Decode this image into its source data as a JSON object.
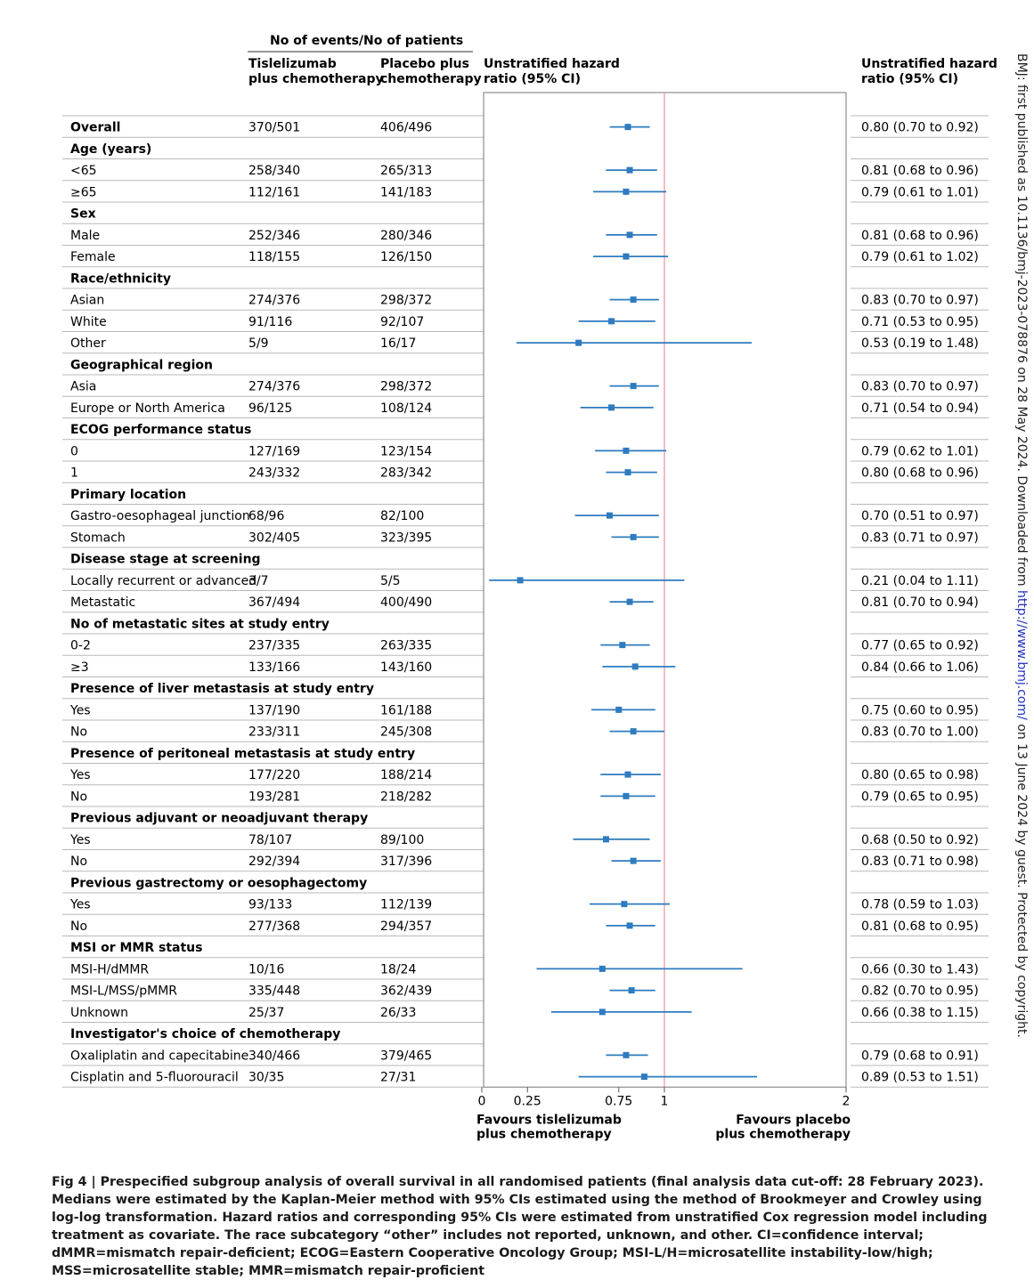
{
  "header": {
    "events_group": "No of events/No of patients",
    "col_tisle_1": "Tislelizumab",
    "col_tisle_2": "plus chemotherapy",
    "col_placebo_1": "Placebo plus",
    "col_placebo_2": "chemotherapy",
    "col_hr_1": "Unstratified hazard",
    "col_hr_2": "ratio (95% CI)",
    "col_hrtext_1": "Unstratified hazard",
    "col_hrtext_2": "ratio (95% CI)"
  },
  "chart_data": {
    "type": "forest",
    "xlim": [
      0,
      2
    ],
    "xticks": [
      "0",
      "0.25",
      "0.75",
      "1",
      "2"
    ],
    "reference_line": 1,
    "reference_color": "#f4a6b0",
    "marker_color": "#2e7bbf",
    "favours_left_1": "Favours tislelizumab",
    "favours_left_2": "plus chemotherapy",
    "favours_right_1": "Favours placebo",
    "favours_right_2": "plus chemotherapy",
    "rows": [
      {
        "label": "Overall",
        "group": true,
        "tisle": "370/501",
        "placebo": "406/496",
        "hr": 0.8,
        "lo": 0.7,
        "hi": 0.92,
        "text": "0.80 (0.70 to 0.92)"
      },
      {
        "label": "Age (years)",
        "group": true
      },
      {
        "label": "<65",
        "tisle": "258/340",
        "placebo": "265/313",
        "hr": 0.81,
        "lo": 0.68,
        "hi": 0.96,
        "text": "0.81 (0.68 to 0.96)"
      },
      {
        "label": "≥65",
        "tisle": "112/161",
        "placebo": "141/183",
        "hr": 0.79,
        "lo": 0.61,
        "hi": 1.01,
        "text": "0.79 (0.61 to 1.01)"
      },
      {
        "label": "Sex",
        "group": true
      },
      {
        "label": "Male",
        "tisle": "252/346",
        "placebo": "280/346",
        "hr": 0.81,
        "lo": 0.68,
        "hi": 0.96,
        "text": "0.81 (0.68 to 0.96)"
      },
      {
        "label": "Female",
        "tisle": "118/155",
        "placebo": "126/150",
        "hr": 0.79,
        "lo": 0.61,
        "hi": 1.02,
        "text": "0.79 (0.61 to 1.02)"
      },
      {
        "label": "Race/ethnicity",
        "group": true
      },
      {
        "label": "Asian",
        "tisle": "274/376",
        "placebo": "298/372",
        "hr": 0.83,
        "lo": 0.7,
        "hi": 0.97,
        "text": "0.83 (0.70 to 0.97)"
      },
      {
        "label": "White",
        "tisle": "91/116",
        "placebo": "92/107",
        "hr": 0.71,
        "lo": 0.53,
        "hi": 0.95,
        "text": "0.71 (0.53 to 0.95)"
      },
      {
        "label": "Other",
        "tisle": "5/9",
        "placebo": "16/17",
        "hr": 0.53,
        "lo": 0.19,
        "hi": 1.48,
        "text": "0.53 (0.19 to 1.48)"
      },
      {
        "label": "Geographical region",
        "group": true
      },
      {
        "label": "Asia",
        "tisle": "274/376",
        "placebo": "298/372",
        "hr": 0.83,
        "lo": 0.7,
        "hi": 0.97,
        "text": "0.83 (0.70 to 0.97)"
      },
      {
        "label": "Europe or North America",
        "tisle": "96/125",
        "placebo": "108/124",
        "hr": 0.71,
        "lo": 0.54,
        "hi": 0.94,
        "text": "0.71 (0.54 to 0.94)"
      },
      {
        "label": "ECOG performance status",
        "group": true
      },
      {
        "label": "0",
        "tisle": "127/169",
        "placebo": "123/154",
        "hr": 0.79,
        "lo": 0.62,
        "hi": 1.01,
        "text": "0.79 (0.62 to 1.01)"
      },
      {
        "label": "1",
        "tisle": "243/332",
        "placebo": "283/342",
        "hr": 0.8,
        "lo": 0.68,
        "hi": 0.96,
        "text": "0.80 (0.68 to 0.96)"
      },
      {
        "label": "Primary location",
        "group": true
      },
      {
        "label": "Gastro-oesophageal junction",
        "tisle": "68/96",
        "placebo": "82/100",
        "hr": 0.7,
        "lo": 0.51,
        "hi": 0.97,
        "text": "0.70 (0.51 to 0.97)"
      },
      {
        "label": "Stomach",
        "tisle": "302/405",
        "placebo": "323/395",
        "hr": 0.83,
        "lo": 0.71,
        "hi": 0.97,
        "text": "0.83 (0.71 to 0.97)"
      },
      {
        "label": "Disease stage at screening",
        "group": true
      },
      {
        "label": "Locally recurrent or advanced",
        "tisle": "3/7",
        "placebo": "5/5",
        "hr": 0.21,
        "lo": 0.04,
        "hi": 1.11,
        "text": "0.21 (0.04 to 1.11)"
      },
      {
        "label": "Metastatic",
        "tisle": "367/494",
        "placebo": "400/490",
        "hr": 0.81,
        "lo": 0.7,
        "hi": 0.94,
        "text": "0.81 (0.70 to 0.94)"
      },
      {
        "label": "No of metastatic sites at study entry",
        "group": true
      },
      {
        "label": "0-2",
        "tisle": "237/335",
        "placebo": "263/335",
        "hr": 0.77,
        "lo": 0.65,
        "hi": 0.92,
        "text": "0.77 (0.65 to 0.92)"
      },
      {
        "label": "≥3",
        "tisle": "133/166",
        "placebo": "143/160",
        "hr": 0.84,
        "lo": 0.66,
        "hi": 1.06,
        "text": "0.84 (0.66 to 1.06)"
      },
      {
        "label": "Presence of liver metastasis at study entry",
        "group": true
      },
      {
        "label": "Yes",
        "tisle": "137/190",
        "placebo": "161/188",
        "hr": 0.75,
        "lo": 0.6,
        "hi": 0.95,
        "text": "0.75 (0.60 to 0.95)"
      },
      {
        "label": "No",
        "tisle": "233/311",
        "placebo": "245/308",
        "hr": 0.83,
        "lo": 0.7,
        "hi": 1.0,
        "text": "0.83 (0.70 to 1.00)"
      },
      {
        "label": "Presence of peritoneal metastasis at study entry",
        "group": true
      },
      {
        "label": "Yes",
        "tisle": "177/220",
        "placebo": "188/214",
        "hr": 0.8,
        "lo": 0.65,
        "hi": 0.98,
        "text": "0.80 (0.65 to 0.98)"
      },
      {
        "label": "No",
        "tisle": "193/281",
        "placebo": "218/282",
        "hr": 0.79,
        "lo": 0.65,
        "hi": 0.95,
        "text": "0.79 (0.65 to 0.95)"
      },
      {
        "label": "Previous adjuvant or neoadjuvant therapy",
        "group": true
      },
      {
        "label": "Yes",
        "tisle": "78/107",
        "placebo": "89/100",
        "hr": 0.68,
        "lo": 0.5,
        "hi": 0.92,
        "text": "0.68 (0.50 to 0.92)"
      },
      {
        "label": "No",
        "tisle": "292/394",
        "placebo": "317/396",
        "hr": 0.83,
        "lo": 0.71,
        "hi": 0.98,
        "text": "0.83 (0.71 to 0.98)"
      },
      {
        "label": "Previous gastrectomy or oesophagectomy",
        "group": true
      },
      {
        "label": "Yes",
        "tisle": "93/133",
        "placebo": "112/139",
        "hr": 0.78,
        "lo": 0.59,
        "hi": 1.03,
        "text": "0.78 (0.59 to 1.03)"
      },
      {
        "label": "No",
        "tisle": "277/368",
        "placebo": "294/357",
        "hr": 0.81,
        "lo": 0.68,
        "hi": 0.95,
        "text": "0.81 (0.68 to 0.95)"
      },
      {
        "label": "MSI or MMR status",
        "group": true
      },
      {
        "label": "MSI-H/dMMR",
        "tisle": "10/16",
        "placebo": "18/24",
        "hr": 0.66,
        "lo": 0.3,
        "hi": 1.43,
        "text": "0.66 (0.30 to 1.43)"
      },
      {
        "label": "MSI-L/MSS/pMMR",
        "tisle": "335/448",
        "placebo": "362/439",
        "hr": 0.82,
        "lo": 0.7,
        "hi": 0.95,
        "text": "0.82 (0.70 to 0.95)"
      },
      {
        "label": "Unknown",
        "tisle": "25/37",
        "placebo": "26/33",
        "hr": 0.66,
        "lo": 0.38,
        "hi": 1.15,
        "text": "0.66 (0.38 to 1.15)"
      },
      {
        "label": "Investigator's choice of chemotherapy",
        "group": true
      },
      {
        "label": "Oxaliplatin and capecitabine",
        "tisle": "340/466",
        "placebo": "379/465",
        "hr": 0.79,
        "lo": 0.68,
        "hi": 0.91,
        "text": "0.79 (0.68 to 0.91)"
      },
      {
        "label": "Cisplatin and 5-fluorouracil",
        "tisle": "30/35",
        "placebo": "27/31",
        "hr": 0.89,
        "lo": 0.53,
        "hi": 1.51,
        "text": "0.89 (0.53 to 1.51)"
      }
    ]
  },
  "caption": {
    "lead": "Fig 4 | ",
    "body": "Prespecified subgroup analysis of overall survival in all randomised patients (final analysis data cut-off: 28 February 2023). Medians were estimated by the Kaplan-Meier method with 95% CIs estimated using the method of Brookmeyer and Crowley using log-log transformation. Hazard ratios and corresponding 95% CIs were estimated from unstratified Cox regression model including treatment as covariate. The race subcategory “other” includes not reported, unknown, and other. CI=confidence interval; dMMR=mismatch repair-deficient; ECOG=Eastern Cooperative Oncology Group; MSI-L/H=microsatellite instability-low/high; MSS=microsatellite stable; MMR=mismatch repair-proficient"
  },
  "sidenote": {
    "prefix": "BMJ: first published as 10.1136/bmj-2023-078876 on 28 May 2024. Downloaded from ",
    "link": "http://www.bmj.com/",
    "suffix": " on 13 June 2024 by guest. Protected by copyright."
  }
}
